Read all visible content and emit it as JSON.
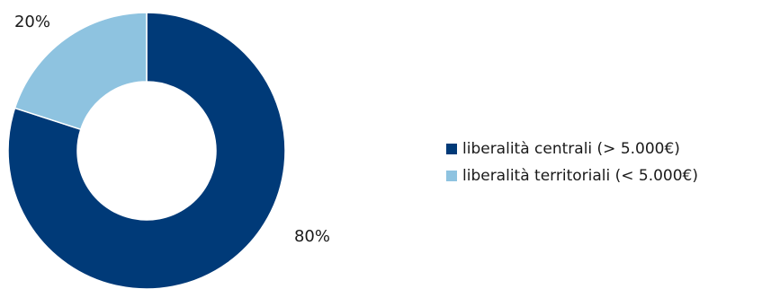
{
  "chart_data": {
    "type": "pie",
    "variant": "donut",
    "title": "",
    "slices": [
      {
        "label": "liberalità centrali (> 5.000€)",
        "value": 80,
        "data_label": "80%",
        "color": "#003A78"
      },
      {
        "label": "liberalità territoriali (< 5.000€)",
        "value": 20,
        "data_label": "20%",
        "color": "#8EC3E0"
      }
    ],
    "legend_position": "right"
  }
}
